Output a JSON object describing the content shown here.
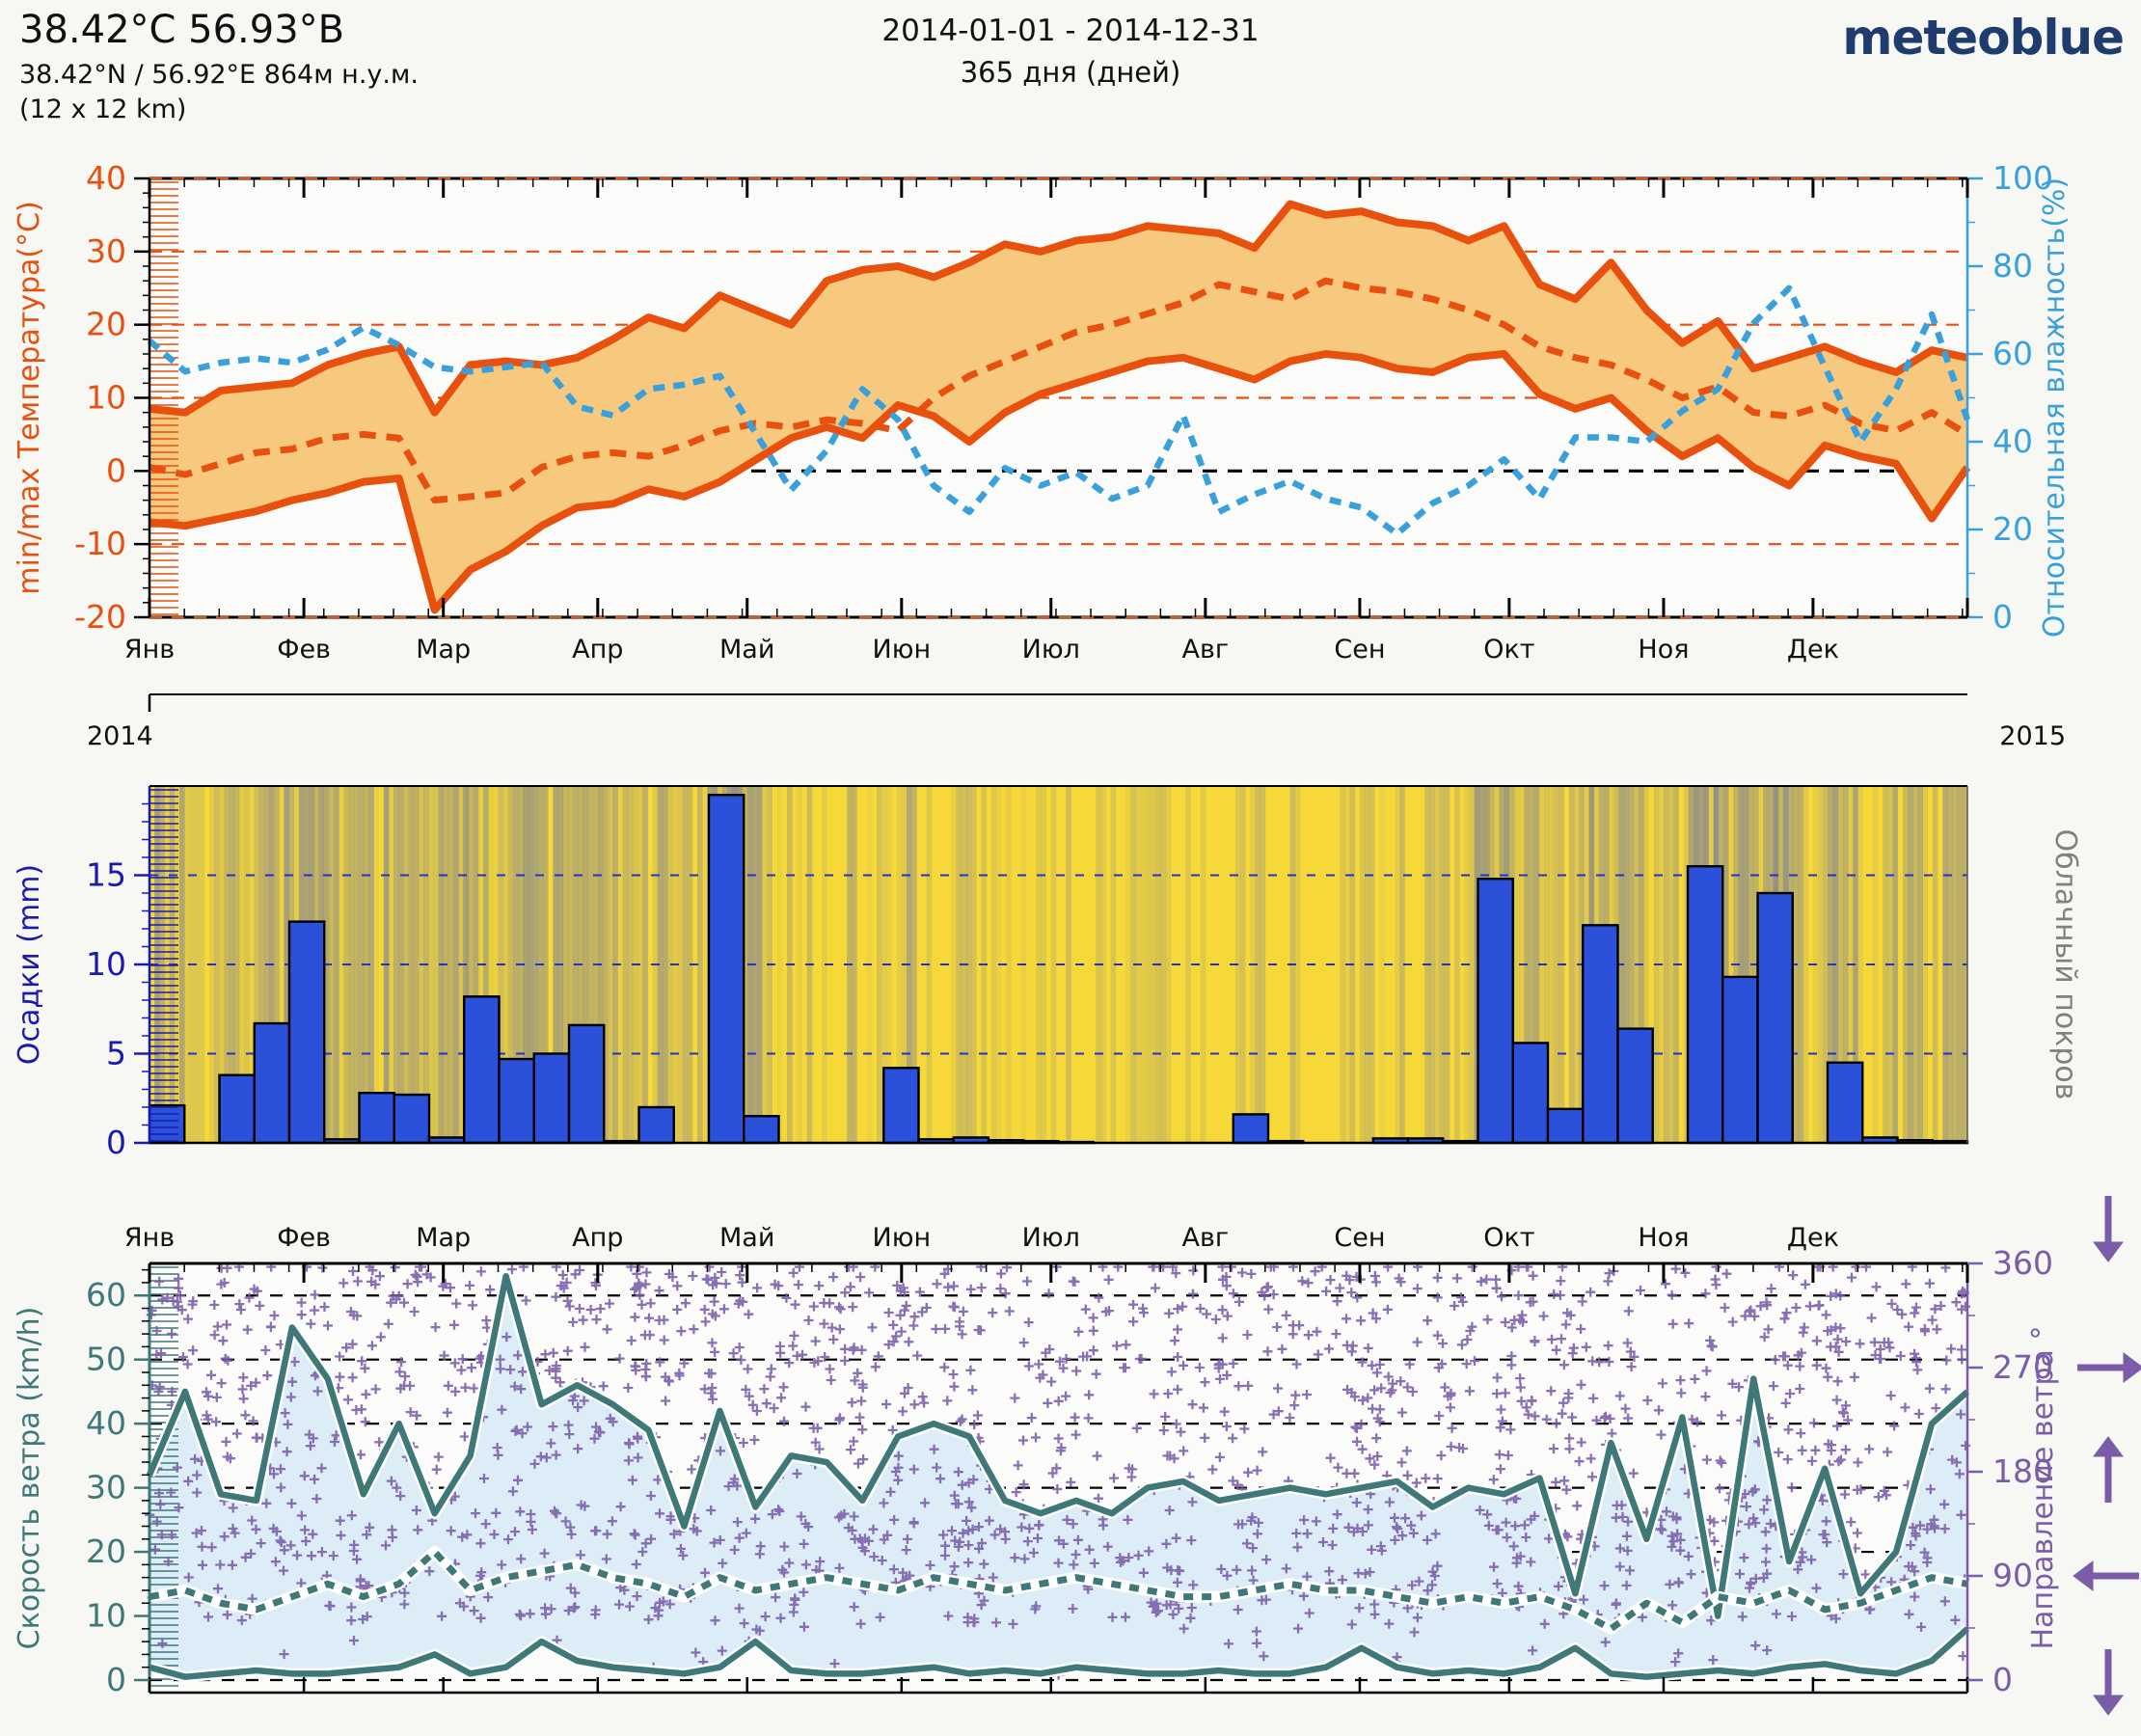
{
  "header": {
    "title": "38.42°C 56.93°B",
    "subtitle": "38.42°N / 56.92°E   864м н.у.м.",
    "resolution": "(12 x 12 km)",
    "period": "2014-01-01 - 2014-12-31",
    "days": "365 дня (дней)",
    "logo": "meteoblue"
  },
  "months": [
    "Янв",
    "Фев",
    "Мар",
    "Апр",
    "Май",
    "Июн",
    "Июл",
    "Авг",
    "Сен",
    "Окт",
    "Ноя",
    "Дек"
  ],
  "month_start_days": [
    0,
    31,
    59,
    90,
    120,
    151,
    181,
    212,
    243,
    273,
    304,
    334
  ],
  "years": {
    "start": "2014",
    "end": "2015"
  },
  "colors": {
    "temp_line": "#e8500e",
    "temp_band": "#f6c97e",
    "humidity": "#3aa0dc",
    "precip_bar": "#2b50d9",
    "precip_axis": "#1a1ab0",
    "cloud_bg": "#f6d839",
    "cloud_stripe": "#8c8c8c",
    "cloud_label": "#808080",
    "wind_line": "#3e7878",
    "wind_fill": "#dcedf7",
    "direction": "#7a5ca8",
    "axes_bg": "#fbfbf9",
    "page_bg": "#f7f7f4",
    "black": "#111111",
    "logo_navy": "#1e3c6e"
  },
  "chart_data": [
    {
      "id": "temperature_humidity",
      "type": "area",
      "x": "weeks 1-52 of 2014",
      "ylabel_left": "min/max Температура(°C)",
      "ylabel_right": "Относительная влажность(%)",
      "ylim_left": [
        -20,
        40
      ],
      "ylim_right": [
        0,
        100
      ],
      "yticks_left": [
        -20,
        -10,
        0,
        10,
        20,
        30,
        40
      ],
      "yticks_right": [
        0,
        20,
        40,
        60,
        80,
        100
      ],
      "orange_gridlines": [
        40,
        30,
        20,
        10,
        -10,
        -20
      ],
      "black_dashed_gridline": 0,
      "series": [
        {
          "name": "t_max_weekly_C",
          "style": "solid",
          "values": [
            8.5,
            8,
            11,
            11.5,
            12,
            14.5,
            16,
            17,
            8,
            14.5,
            15,
            14.5,
            15.5,
            18,
            21,
            19.5,
            24,
            22,
            20,
            26,
            27.5,
            28,
            26.5,
            28.5,
            31,
            30,
            31.5,
            32,
            33.5,
            33,
            32.5,
            30.5,
            36.5,
            35,
            35.5,
            34,
            33.5,
            31.5,
            33.5,
            25.5,
            23.5,
            28.5,
            22,
            17.5,
            20.5,
            14,
            15.5,
            17,
            15,
            13.5,
            16.5,
            15.5
          ]
        },
        {
          "name": "t_min_weekly_C",
          "style": "solid",
          "values": [
            -7,
            -7.5,
            -6.5,
            -5.5,
            -4,
            -3,
            -1.5,
            -1,
            -19,
            -13.5,
            -11,
            -7.5,
            -5,
            -4.5,
            -2.5,
            -3.5,
            -1.5,
            1.5,
            4.5,
            6,
            4.5,
            9,
            7.5,
            4,
            8,
            10.5,
            12,
            13.5,
            15,
            15.5,
            14,
            12.5,
            15,
            16,
            15.5,
            14,
            13.5,
            15.5,
            16,
            10.5,
            8.5,
            10,
            5.5,
            2,
            4.5,
            0.5,
            -2,
            3.5,
            2,
            1,
            -6.5,
            0.5
          ]
        },
        {
          "name": "t_mean_weekly_C",
          "style": "dashed",
          "values": [
            0.5,
            -0.5,
            1,
            2.5,
            3,
            4.5,
            5,
            4.5,
            -4,
            -3.5,
            -3,
            0.5,
            2,
            2.5,
            2,
            3.5,
            5.5,
            6.5,
            6,
            7,
            6.5,
            5.5,
            10,
            13,
            15,
            17,
            19,
            20,
            21.5,
            23,
            25.5,
            24.5,
            23.5,
            26,
            25,
            24.5,
            23.5,
            22,
            20,
            17,
            15.5,
            14.5,
            12.5,
            10,
            11.5,
            8,
            7.5,
            9,
            6.5,
            5.5,
            8,
            5
          ]
        },
        {
          "name": "rel_humidity_weekly_pct",
          "style": "dashed",
          "axis": "right",
          "values": [
            63,
            56,
            58,
            59,
            58,
            61,
            66,
            62,
            57,
            56,
            57,
            58,
            48,
            46,
            52,
            53,
            55,
            42,
            29,
            38,
            52,
            45,
            30,
            24,
            34,
            30,
            33,
            27,
            30,
            46,
            24,
            28,
            31,
            27,
            25,
            19,
            26,
            30,
            36,
            27,
            41,
            41,
            40,
            47,
            52,
            67,
            75,
            57,
            40,
            52,
            69,
            45
          ]
        }
      ]
    },
    {
      "id": "precipitation_cloud",
      "type": "bar",
      "ylabel_left": "Осадки (mm)",
      "ylabel_right": "Облачный покров",
      "ylim": [
        0,
        20
      ],
      "yticks": [
        0,
        5,
        10,
        15
      ],
      "precip_weekly_mm": [
        2.1,
        0,
        3.8,
        6.7,
        12.4,
        0.2,
        2.8,
        2.7,
        0.3,
        8.2,
        4.7,
        5.0,
        6.6,
        0.1,
        2.0,
        0,
        19.5,
        1.5,
        0,
        0,
        0,
        4.2,
        0.2,
        0.3,
        0.15,
        0.1,
        0.05,
        0,
        0,
        0,
        0,
        1.6,
        0.1,
        0,
        0,
        0.25,
        0.25,
        0.1,
        14.8,
        5.6,
        1.9,
        12.2,
        6.4,
        0,
        15.5,
        9.3,
        14.0,
        0,
        4.5,
        0.3,
        0.15,
        0.1
      ],
      "cloud_cover_weekly_pct": [
        55,
        35,
        45,
        60,
        70,
        40,
        55,
        50,
        45,
        65,
        60,
        55,
        60,
        35,
        45,
        30,
        85,
        55,
        25,
        20,
        30,
        45,
        15,
        20,
        15,
        10,
        12,
        18,
        15,
        12,
        10,
        25,
        15,
        12,
        10,
        20,
        25,
        15,
        70,
        55,
        45,
        75,
        60,
        30,
        80,
        65,
        75,
        40,
        55,
        35,
        45,
        40
      ]
    },
    {
      "id": "wind",
      "type": "line-scatter",
      "ylabel_left": "Скорость ветра (km/h)",
      "ylabel_right": "Направление ветра °",
      "ylim_left": [
        0,
        65
      ],
      "ylim_right": [
        0,
        360
      ],
      "yticks_left": [
        0,
        10,
        20,
        30,
        40,
        50,
        60
      ],
      "yticks_right": [
        0,
        90,
        180,
        270,
        360
      ],
      "series": [
        {
          "name": "wind_max_weekly_kmh",
          "style": "solid",
          "values": [
            32,
            45,
            29,
            28,
            55,
            47,
            29,
            40,
            26,
            35,
            63,
            43,
            46,
            43,
            39,
            24,
            42,
            27,
            35,
            34,
            28,
            38,
            40,
            38,
            28,
            26,
            28,
            26,
            30,
            31,
            28,
            29,
            30,
            29,
            30,
            31,
            27,
            30,
            29,
            31.5,
            13.5,
            37,
            22,
            41,
            10,
            47,
            18.5,
            33,
            13.5,
            20,
            40,
            45
          ]
        },
        {
          "name": "wind_mean_weekly_kmh",
          "style": "dotted",
          "values": [
            13,
            14,
            12,
            11,
            13,
            15,
            13,
            15,
            20,
            14,
            16,
            17,
            18,
            16,
            15,
            13,
            16,
            14,
            15,
            16,
            15,
            14,
            16,
            15,
            14,
            15,
            16,
            15,
            14,
            13,
            13,
            14,
            15,
            14,
            14,
            13,
            12,
            13,
            12,
            13,
            11,
            8,
            12,
            9,
            13,
            12,
            14,
            11,
            12,
            14,
            16,
            15
          ]
        },
        {
          "name": "wind_min_weekly_kmh",
          "style": "solid",
          "values": [
            2,
            0.5,
            1,
            1.5,
            1,
            1,
            1.5,
            2,
            4,
            1,
            2,
            6,
            3,
            2,
            1.5,
            1,
            2,
            6,
            1.5,
            1,
            1,
            1.5,
            2,
            1,
            1.5,
            1,
            2,
            1.5,
            1,
            1,
            1.5,
            1,
            1,
            2,
            5,
            2,
            1,
            1.5,
            1,
            2,
            5,
            1,
            0.5,
            1,
            1.5,
            1,
            2,
            2.5,
            1.5,
            1,
            3,
            8
          ]
        }
      ],
      "direction_scatter": {
        "marker": "+",
        "range_deg": [
          0,
          360
        ],
        "daily_points_avg": 4,
        "seed": 42
      },
      "direction_arrows": [
        {
          "deg": 360,
          "points": "down"
        },
        {
          "deg": 270,
          "points": "right"
        },
        {
          "deg": 180,
          "points": "up"
        },
        {
          "deg": 90,
          "points": "left"
        },
        {
          "deg": 0,
          "points": "down"
        }
      ]
    }
  ]
}
